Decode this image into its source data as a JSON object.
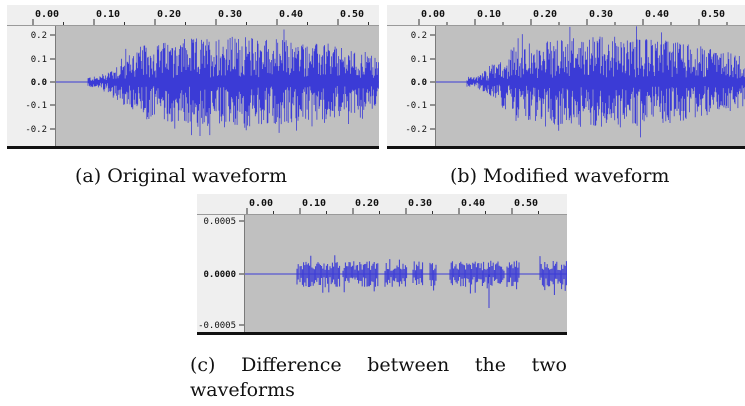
{
  "panels": [
    {
      "id": "a",
      "ruler_labels": [
        "0.00",
        "0.10",
        "0.20",
        "0.30",
        "0.40",
        "0.50"
      ],
      "axis_labels": [
        "0.2",
        "0.1",
        "0.0",
        "-0.1",
        "-0.2"
      ],
      "waveform_color": "#3b3bd6",
      "caption": "(a) Original waveform"
    },
    {
      "id": "b",
      "ruler_labels": [
        "0.00",
        "0.10",
        "0.20",
        "0.30",
        "0.40",
        "0.50"
      ],
      "axis_labels": [
        "0.2",
        "0.1",
        "0.0",
        "-0.1",
        "-0.2"
      ],
      "waveform_color": "#3b3bd6",
      "caption": "(b) Modified waveform"
    },
    {
      "id": "c",
      "ruler_labels": [
        "0.00",
        "0.10",
        "0.20",
        "0.30",
        "0.40",
        "0.50"
      ],
      "axis_labels": [
        "0.0005",
        "0.0000",
        "-0.0005"
      ],
      "waveform_color": "#3b3bd6",
      "caption_line1": [
        "(c)",
        "Difference",
        "between",
        "the",
        "two"
      ],
      "caption_line2": "waveforms"
    }
  ],
  "colors": {
    "track_bg": "#c0c0c0",
    "ruler_bg": "#efefef",
    "waveform": "#3b3bd6"
  }
}
